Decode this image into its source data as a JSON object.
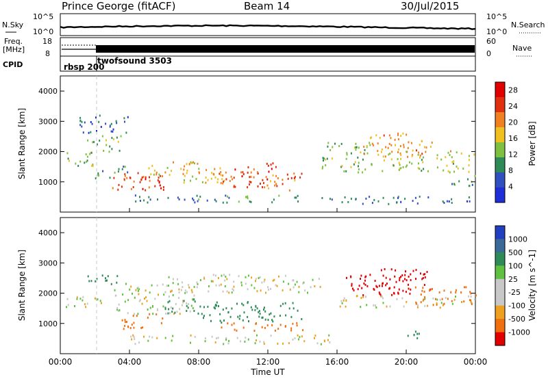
{
  "header": {
    "station": "Prince George (fitACF)",
    "beam": "Beam 14",
    "date": "30/Jul/2015"
  },
  "sky_panel": {
    "left_label": "N.Sky",
    "left_ticks": [
      "10^5",
      "10^0"
    ],
    "right_ticks": [
      "10^5",
      "10^0"
    ],
    "right_label": "N.Search"
  },
  "freq_panel": {
    "left_label_1": "Freq.",
    "left_label_2": "[MHz]",
    "left_ticks": [
      "18",
      "8"
    ],
    "right_ticks": [
      "60",
      "0"
    ],
    "right_label": "Nave"
  },
  "cpid": {
    "label": "CPID",
    "modes": [
      {
        "name": "rbsp 200",
        "start_hour": 0.0
      },
      {
        "name": "twofsound 3503",
        "start_hour": 1.9
      }
    ]
  },
  "colors": {
    "power_scale": [
      "#1f2fd8",
      "#3050c0",
      "#2e8b57",
      "#7fc040",
      "#f0c020",
      "#f08020",
      "#e03010",
      "#e00000"
    ],
    "velocity_scale": [
      "#2040c0",
      "#3a6a9a",
      "#2e8b57",
      "#60c040",
      "#c8c8c8",
      "#c8c8c8",
      "#f0a020",
      "#f07010",
      "#e00000"
    ],
    "ground_scatter": "#b0b0b0"
  },
  "chart_data": [
    {
      "type": "heatmap",
      "name": "power",
      "xlabel": "",
      "ylabel": "Slant Range [km]",
      "x_range_hours": [
        0,
        24
      ],
      "ylim": [
        0,
        4500
      ],
      "yticks": [
        "1000",
        "2000",
        "3000",
        "4000"
      ],
      "colorbar": {
        "label": "Power [dB]",
        "ticks": [
          "4",
          "8",
          "12",
          "16",
          "20",
          "24",
          "28"
        ],
        "range": [
          0,
          30
        ]
      },
      "bands": [
        {
          "t0": 0.0,
          "t1": 2.0,
          "r0": 1500,
          "r1": 1950,
          "v": 13
        },
        {
          "t0": 1.5,
          "t1": 3.5,
          "r0": 1900,
          "r1": 2500,
          "v": 12
        },
        {
          "t0": 2.0,
          "t1": 4.0,
          "r0": 1100,
          "r1": 1500,
          "v": 10
        },
        {
          "t0": 3.0,
          "t1": 6.0,
          "r0": 700,
          "r1": 1300,
          "v": 22
        },
        {
          "t0": 4.5,
          "t1": 6.0,
          "r0": 700,
          "r1": 1100,
          "v": 26
        },
        {
          "t0": 5.0,
          "t1": 8.0,
          "r0": 1200,
          "r1": 1700,
          "v": 18
        },
        {
          "t0": 7.0,
          "t1": 10.0,
          "r0": 900,
          "r1": 1500,
          "v": 17
        },
        {
          "t0": 9.0,
          "t1": 12.5,
          "r0": 800,
          "r1": 1600,
          "v": 23
        },
        {
          "t0": 12.0,
          "t1": 14.0,
          "r0": 700,
          "r1": 1300,
          "v": 21
        },
        {
          "t0": 4.0,
          "t1": 14.0,
          "r0": 300,
          "r1": 550,
          "v": 9
        },
        {
          "t0": 1.0,
          "t1": 4.0,
          "r0": 2600,
          "r1": 3200,
          "v": 6
        },
        {
          "t0": 15.0,
          "t1": 18.0,
          "r0": 1300,
          "r1": 2300,
          "v": 12
        },
        {
          "t0": 17.5,
          "t1": 21.5,
          "r0": 1800,
          "r1": 2600,
          "v": 19
        },
        {
          "t0": 18.5,
          "t1": 24.0,
          "r0": 1300,
          "r1": 2000,
          "v": 15
        },
        {
          "t0": 22.5,
          "t1": 24.0,
          "r0": 800,
          "r1": 1200,
          "v": 10
        },
        {
          "t0": 15.0,
          "t1": 24.0,
          "r0": 250,
          "r1": 500,
          "v": 7
        }
      ]
    },
    {
      "type": "heatmap",
      "name": "velocity",
      "xlabel": "Time UT",
      "ylabel": "Slant Range [km]",
      "x_range_hours": [
        0,
        24
      ],
      "xticks": [
        "00:00",
        "04:00",
        "08:00",
        "12:00",
        "16:00",
        "20:00",
        "00:00"
      ],
      "ylim": [
        0,
        4500
      ],
      "yticks": [
        "1000",
        "2000",
        "3000",
        "4000"
      ],
      "colorbar": {
        "label": "Velocity [m s^-1]",
        "ticks": [
          "1000",
          "500",
          "100",
          "25",
          "-25",
          "-100",
          "-500",
          "-1000"
        ]
      },
      "bands": [
        {
          "t0": 0.0,
          "t1": 2.5,
          "r0": 1500,
          "r1": 1900,
          "v": 0
        },
        {
          "t0": 1.5,
          "t1": 3.5,
          "r0": 2200,
          "r1": 2600,
          "v": 120
        },
        {
          "t0": 3.0,
          "t1": 8.0,
          "r0": 1300,
          "r1": 2300,
          "v": 0
        },
        {
          "t0": 3.5,
          "t1": 6.0,
          "r0": 800,
          "r1": 1300,
          "v": -200
        },
        {
          "t0": 6.0,
          "t1": 8.0,
          "r0": 1300,
          "r1": 1800,
          "v": 150
        },
        {
          "t0": 8.0,
          "t1": 14.0,
          "r0": 1000,
          "r1": 1700,
          "v": 130
        },
        {
          "t0": 9.0,
          "t1": 14.0,
          "r0": 700,
          "r1": 1000,
          "v": -110
        },
        {
          "t0": 6.0,
          "t1": 15.0,
          "r0": 2000,
          "r1": 2600,
          "v": 0
        },
        {
          "t0": 4.0,
          "t1": 16.0,
          "r0": 300,
          "r1": 600,
          "v": 0
        },
        {
          "t0": 16.0,
          "t1": 24.0,
          "r0": 1500,
          "r1": 1900,
          "v": 0
        },
        {
          "t0": 16.5,
          "t1": 20.5,
          "r0": 1900,
          "r1": 2600,
          "v": -520
        },
        {
          "t0": 18.5,
          "t1": 21.5,
          "r0": 2100,
          "r1": 2800,
          "v": -900
        },
        {
          "t0": 20.5,
          "t1": 24.0,
          "r0": 1600,
          "r1": 2200,
          "v": -150
        },
        {
          "t0": 20.0,
          "t1": 21.0,
          "r0": 500,
          "r1": 900,
          "v": 120
        }
      ]
    }
  ]
}
